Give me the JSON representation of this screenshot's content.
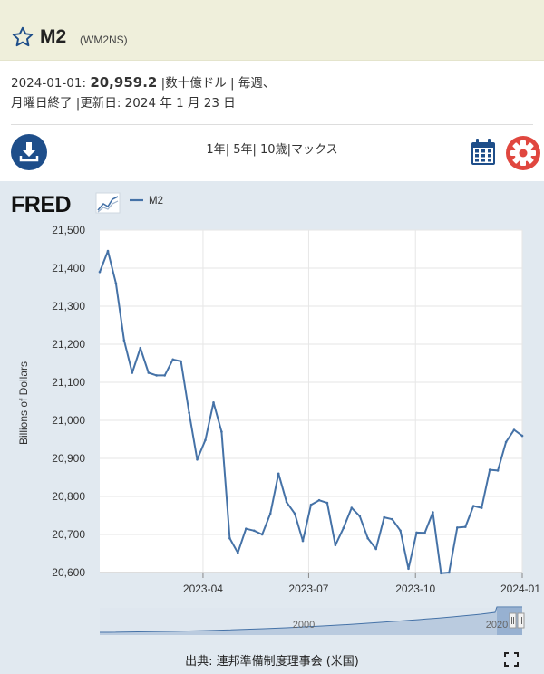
{
  "header": {
    "title": "M2",
    "series_id": "(WM2NS)",
    "favorite_icon": "star-icon"
  },
  "meta": {
    "date": "2024-01-01:",
    "value": "20,959.2",
    "line1_rest": "|数十億ドル | 毎週、",
    "line2": "月曜日終了 |更新日: 2024 年 1 月 23 日"
  },
  "toolbar": {
    "download_icon": "download-icon",
    "ranges": [
      "1年",
      "5年",
      "10歳",
      "マックス"
    ],
    "separator": "|",
    "calendar_icon": "calendar-icon",
    "settings_icon": "gear-icon"
  },
  "chart": {
    "logo_text": "FRED",
    "legend": "M2",
    "source": "出典: 連邦準備制度理事会 (米国)",
    "navigator_label": "2000",
    "navigator_right_label": "2020",
    "colors": {
      "line": "#4572a7",
      "accent": "#1e4e8a",
      "gear": "#e0473f",
      "bg": "#e1e9f0"
    }
  },
  "chart_data": {
    "type": "line",
    "title": "",
    "xlabel": "",
    "ylabel": "Billions of Dollars",
    "ylim": [
      20600,
      21500
    ],
    "yticks": [
      21500,
      21400,
      21300,
      21200,
      21100,
      21000,
      20900,
      20800,
      20700,
      20600
    ],
    "ytick_labels": [
      "21,500",
      "21,400",
      "21,300",
      "21,200",
      "21,100",
      "21,000",
      "20,900",
      "20,800",
      "20,700",
      "20,600"
    ],
    "xtick_labels": [
      "2023-04",
      "2023-07",
      "2023-10",
      "2024-01"
    ],
    "xlim": [
      "2023-01-02",
      "2024-01-01"
    ],
    "grid": true,
    "legend_position": "top-left",
    "series": [
      {
        "name": "M2",
        "x": [
          "2023-01-02",
          "2023-01-09",
          "2023-01-16",
          "2023-01-23",
          "2023-01-30",
          "2023-02-06",
          "2023-02-13",
          "2023-02-20",
          "2023-02-27",
          "2023-03-06",
          "2023-03-13",
          "2023-03-20",
          "2023-03-27",
          "2023-04-03",
          "2023-04-10",
          "2023-04-17",
          "2023-04-24",
          "2023-05-01",
          "2023-05-08",
          "2023-05-15",
          "2023-05-22",
          "2023-05-29",
          "2023-06-05",
          "2023-06-12",
          "2023-06-19",
          "2023-06-26",
          "2023-07-03",
          "2023-07-10",
          "2023-07-17",
          "2023-07-24",
          "2023-07-31",
          "2023-08-07",
          "2023-08-14",
          "2023-08-21",
          "2023-08-28",
          "2023-09-04",
          "2023-09-11",
          "2023-09-18",
          "2023-09-25",
          "2023-10-02",
          "2023-10-09",
          "2023-10-16",
          "2023-10-23",
          "2023-10-30",
          "2023-11-06",
          "2023-11-13",
          "2023-11-20",
          "2023-11-27",
          "2023-12-04",
          "2023-12-11",
          "2023-12-18",
          "2023-12-25",
          "2024-01-01"
        ],
        "values": [
          21390,
          21445,
          21360,
          21210,
          21125,
          21190,
          21125,
          21118,
          21118,
          21160,
          21155,
          21020,
          20897,
          20948,
          21047,
          20970,
          20690,
          20652,
          20715,
          20710,
          20700,
          20755,
          20860,
          20785,
          20755,
          20683,
          20778,
          20790,
          20783,
          20672,
          20717,
          20770,
          20748,
          20690,
          20662,
          20745,
          20740,
          20710,
          20610,
          20705,
          20704,
          20758,
          20598,
          20600,
          20718,
          20720,
          20775,
          20770,
          20870,
          20868,
          20943,
          20975,
          20959.2
        ]
      }
    ]
  }
}
